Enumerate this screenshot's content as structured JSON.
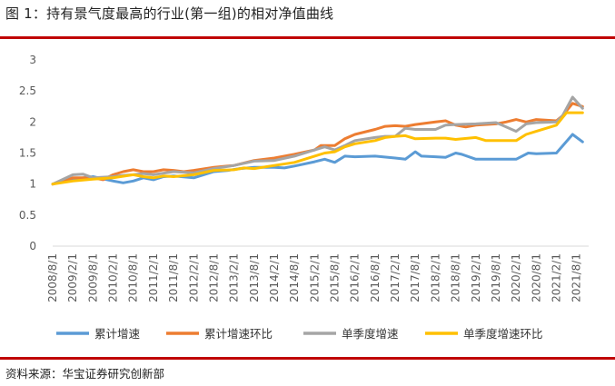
{
  "header": {
    "title": "图 1：持有景气度最高的行业(第一组)的相对净值曲线"
  },
  "footer": {
    "source": "资料来源：华宝证券研究创新部"
  },
  "colors": {
    "rule": "#c00000"
  },
  "chart_data": {
    "type": "line",
    "title": "",
    "xlabel": "",
    "ylabel": "",
    "ylim": [
      0,
      3
    ],
    "yticks": [
      "0",
      "0.5",
      "1",
      "1.5",
      "2",
      "2.5",
      "3"
    ],
    "grid": false,
    "legend_position": "bottom",
    "x_tick_labels": [
      "2008/8/1",
      "2009/2/1",
      "2009/8/1",
      "2010/2/1",
      "2010/8/1",
      "2011/2/1",
      "2011/8/1",
      "2012/2/1",
      "2012/8/1",
      "2013/2/1",
      "2013/8/1",
      "2014/2/1",
      "2014/8/1",
      "2015/2/1",
      "2015/8/1",
      "2016/2/1",
      "2016/8/1",
      "2017/2/1",
      "2017/8/1",
      "2018/2/1",
      "2018/8/1",
      "2019/2/1",
      "2019/8/1",
      "2020/2/1",
      "2020/8/1",
      "2021/2/1",
      "2021/8/1"
    ],
    "period_start_index": 0,
    "period_end_index": 26.6,
    "series": [
      {
        "name": "累计增速",
        "color": "#5b9bd5",
        "points": [
          [
            0,
            1.0
          ],
          [
            1,
            1.08
          ],
          [
            2,
            1.12
          ],
          [
            3,
            1.05
          ],
          [
            3.5,
            1.02
          ],
          [
            4,
            1.05
          ],
          [
            4.5,
            1.1
          ],
          [
            5,
            1.07
          ],
          [
            5.5,
            1.12
          ],
          [
            6,
            1.13
          ],
          [
            7,
            1.1
          ],
          [
            8,
            1.2
          ],
          [
            8.7,
            1.22
          ],
          [
            9.3,
            1.25
          ],
          [
            10,
            1.27
          ],
          [
            11,
            1.27
          ],
          [
            11.5,
            1.26
          ],
          [
            12,
            1.29
          ],
          [
            13,
            1.36
          ],
          [
            13.5,
            1.4
          ],
          [
            14,
            1.35
          ],
          [
            14.5,
            1.45
          ],
          [
            15,
            1.44
          ],
          [
            16,
            1.45
          ],
          [
            17,
            1.42
          ],
          [
            17.5,
            1.4
          ],
          [
            18,
            1.52
          ],
          [
            18.3,
            1.45
          ],
          [
            19,
            1.44
          ],
          [
            19.5,
            1.43
          ],
          [
            20,
            1.5
          ],
          [
            20.3,
            1.48
          ],
          [
            21,
            1.4
          ],
          [
            22,
            1.4
          ],
          [
            23,
            1.4
          ],
          [
            23.6,
            1.5
          ],
          [
            24,
            1.49
          ],
          [
            25,
            1.5
          ],
          [
            25.8,
            1.8
          ],
          [
            26.3,
            1.68
          ]
        ]
      },
      {
        "name": "累计增速环比",
        "color": "#ed7d31",
        "points": [
          [
            0,
            1.0
          ],
          [
            1,
            1.1
          ],
          [
            2,
            1.1
          ],
          [
            2.5,
            1.07
          ],
          [
            3,
            1.15
          ],
          [
            3.5,
            1.2
          ],
          [
            4,
            1.23
          ],
          [
            4.5,
            1.2
          ],
          [
            5,
            1.2
          ],
          [
            5.5,
            1.23
          ],
          [
            6,
            1.22
          ],
          [
            6.5,
            1.2
          ],
          [
            7,
            1.22
          ],
          [
            8,
            1.27
          ],
          [
            9,
            1.3
          ],
          [
            10,
            1.38
          ],
          [
            11,
            1.42
          ],
          [
            12,
            1.48
          ],
          [
            13,
            1.55
          ],
          [
            13.3,
            1.62
          ],
          [
            14,
            1.62
          ],
          [
            14.5,
            1.73
          ],
          [
            15,
            1.8
          ],
          [
            16,
            1.88
          ],
          [
            16.5,
            1.93
          ],
          [
            17,
            1.94
          ],
          [
            17.5,
            1.93
          ],
          [
            18,
            1.96
          ],
          [
            19,
            2.0
          ],
          [
            19.5,
            2.02
          ],
          [
            20,
            1.95
          ],
          [
            20.5,
            1.92
          ],
          [
            21,
            1.95
          ],
          [
            22,
            1.97
          ],
          [
            22.5,
            2.0
          ],
          [
            23,
            2.04
          ],
          [
            23.5,
            2.0
          ],
          [
            24,
            2.04
          ],
          [
            25,
            2.02
          ],
          [
            25.3,
            2.1
          ],
          [
            25.8,
            2.3
          ],
          [
            26.3,
            2.25
          ]
        ]
      },
      {
        "name": "单季度增速",
        "color": "#a5a5a5",
        "points": [
          [
            0,
            1.0
          ],
          [
            1,
            1.15
          ],
          [
            1.5,
            1.16
          ],
          [
            2,
            1.1
          ],
          [
            3,
            1.12
          ],
          [
            3.5,
            1.14
          ],
          [
            4,
            1.15
          ],
          [
            4.5,
            1.17
          ],
          [
            5,
            1.15
          ],
          [
            6,
            1.2
          ],
          [
            7,
            1.18
          ],
          [
            8,
            1.25
          ],
          [
            9,
            1.3
          ],
          [
            10,
            1.37
          ],
          [
            11,
            1.38
          ],
          [
            12,
            1.45
          ],
          [
            13,
            1.55
          ],
          [
            13.5,
            1.6
          ],
          [
            14,
            1.55
          ],
          [
            14.5,
            1.62
          ],
          [
            15,
            1.7
          ],
          [
            16,
            1.75
          ],
          [
            16.5,
            1.77
          ],
          [
            17,
            1.77
          ],
          [
            17.5,
            1.9
          ],
          [
            18,
            1.88
          ],
          [
            19,
            1.88
          ],
          [
            19.5,
            1.95
          ],
          [
            20,
            1.96
          ],
          [
            21,
            1.97
          ],
          [
            22,
            1.99
          ],
          [
            22.3,
            1.95
          ],
          [
            23,
            1.85
          ],
          [
            23.5,
            1.97
          ],
          [
            24,
            1.99
          ],
          [
            25,
            2.0
          ],
          [
            25.3,
            2.1
          ],
          [
            25.8,
            2.4
          ],
          [
            26.3,
            2.22
          ]
        ]
      },
      {
        "name": "单季度增速环比",
        "color": "#ffc000",
        "points": [
          [
            0,
            1.0
          ],
          [
            1,
            1.05
          ],
          [
            2,
            1.08
          ],
          [
            3,
            1.1
          ],
          [
            4,
            1.15
          ],
          [
            4.5,
            1.12
          ],
          [
            5,
            1.1
          ],
          [
            5.5,
            1.13
          ],
          [
            6,
            1.12
          ],
          [
            7,
            1.15
          ],
          [
            8,
            1.22
          ],
          [
            9,
            1.23
          ],
          [
            9.5,
            1.26
          ],
          [
            10,
            1.25
          ],
          [
            11,
            1.3
          ],
          [
            12,
            1.35
          ],
          [
            13,
            1.45
          ],
          [
            13.5,
            1.5
          ],
          [
            14,
            1.52
          ],
          [
            14.5,
            1.6
          ],
          [
            15,
            1.65
          ],
          [
            16,
            1.7
          ],
          [
            16.5,
            1.75
          ],
          [
            17,
            1.77
          ],
          [
            17.5,
            1.78
          ],
          [
            18,
            1.73
          ],
          [
            19,
            1.74
          ],
          [
            19.5,
            1.74
          ],
          [
            20,
            1.72
          ],
          [
            21,
            1.75
          ],
          [
            21.5,
            1.7
          ],
          [
            22,
            1.7
          ],
          [
            23,
            1.7
          ],
          [
            23.5,
            1.8
          ],
          [
            24,
            1.85
          ],
          [
            25,
            1.95
          ],
          [
            25.5,
            2.15
          ],
          [
            26.3,
            2.15
          ]
        ]
      }
    ]
  }
}
